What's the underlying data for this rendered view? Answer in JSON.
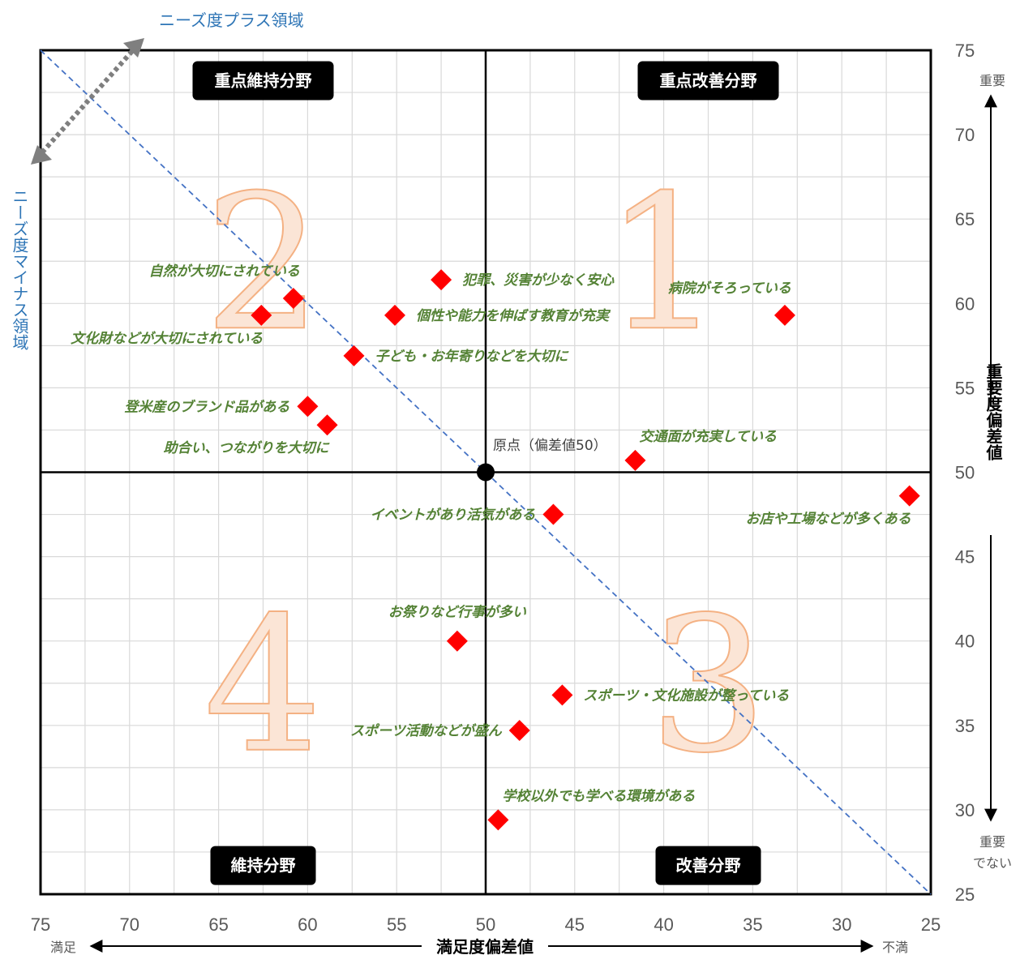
{
  "chart_data": {
    "type": "scatter",
    "xlabel": "満足度偏差値",
    "ylabel": "重要度偏差値",
    "xlim": [
      75,
      25
    ],
    "ylim": [
      25,
      75
    ],
    "x_reversed": true,
    "x_ticks": [
      "75",
      "70",
      "65",
      "60",
      "55",
      "50",
      "45",
      "40",
      "35",
      "30",
      "25"
    ],
    "y_ticks": [
      "75",
      "70",
      "65",
      "60",
      "55",
      "50",
      "45",
      "40",
      "35",
      "30",
      "25"
    ],
    "grid": true,
    "x_end_labels": {
      "left": "満足",
      "right": "不満"
    },
    "y_end_labels": {
      "top": "重要",
      "bottom_line1": "重要",
      "bottom_line2": "でない"
    },
    "origin": {
      "x": 50,
      "y": 50,
      "label": "原点（偏差値50）"
    },
    "diagonal": {
      "from": [
        75,
        75
      ],
      "to": [
        25,
        25
      ]
    },
    "needs_plus_label": "ニーズ度プラス領域",
    "needs_minus_label": "ニーズ度マイナス領域",
    "quadrants": [
      {
        "number": "1",
        "x": 40,
        "y": 62.5
      },
      {
        "number": "2",
        "x": 62.5,
        "y": 62.5
      },
      {
        "number": "3",
        "x": 37.5,
        "y": 37.5
      },
      {
        "number": "4",
        "x": 62.5,
        "y": 37.5
      }
    ],
    "badges": [
      {
        "text": "重点維持分野",
        "x": 62.5,
        "y": 73.2
      },
      {
        "text": "重点改善分野",
        "x": 37.5,
        "y": 73.2
      },
      {
        "text": "維持分野",
        "x": 62.5,
        "y": 26.7
      },
      {
        "text": "改善分野",
        "x": 37.5,
        "y": 26.7
      }
    ],
    "points": [
      {
        "label": "自然が大切にされている",
        "x": 60.8,
        "y": 60.3,
        "label_pos": "above-left"
      },
      {
        "label": "犯罪、災害が少なく安心",
        "x": 52.5,
        "y": 61.4,
        "label_pos": "right"
      },
      {
        "label": "病院がそろっている",
        "x": 33.2,
        "y": 59.3,
        "label_pos": "above-left"
      },
      {
        "label": "文化財などが大切にされている",
        "x": 62.6,
        "y": 59.3,
        "label_pos": "below-left"
      },
      {
        "label": "個性や能力を伸ばす教育が充実",
        "x": 55.1,
        "y": 59.3,
        "label_pos": "right"
      },
      {
        "label": "子ども・お年寄りなどを大切に",
        "x": 57.4,
        "y": 56.9,
        "label_pos": "right"
      },
      {
        "label": "登米産のブランド品がある",
        "x": 60.0,
        "y": 53.9,
        "label_pos": "left"
      },
      {
        "label": "助合い、つながりを大切に",
        "x": 58.9,
        "y": 52.8,
        "label_pos": "below-left"
      },
      {
        "label": "交通面が充実している",
        "x": 41.6,
        "y": 50.7,
        "label_pos": "above-right"
      },
      {
        "label": "お店や工場などが多くある",
        "x": 26.2,
        "y": 48.6,
        "label_pos": "below-left"
      },
      {
        "label": "イベントがあり活気がある",
        "x": 46.2,
        "y": 47.5,
        "label_pos": "left"
      },
      {
        "label": "お祭りなど行事が多い",
        "x": 51.6,
        "y": 40.0,
        "label_pos": "above"
      },
      {
        "label": "スポーツ・文化施設が整っている",
        "x": 45.7,
        "y": 36.8,
        "label_pos": "right"
      },
      {
        "label": "スポーツ活動などが盛ん",
        "x": 48.1,
        "y": 34.7,
        "label_pos": "left"
      },
      {
        "label": "学校以外でも学べる環境がある",
        "x": 49.3,
        "y": 29.4,
        "label_pos": "above-right"
      }
    ]
  },
  "colors": {
    "point": "#ff0000",
    "point_label": "#548235",
    "diagonal": "#4472c4",
    "grid": "#d9d9d9",
    "badge_bg": "#000000",
    "needs_text": "#2e75b6",
    "needs_arrow": "#7f7f7f",
    "quadrant_fill": "#fbe5d6",
    "quadrant_stroke": "#f4b183"
  }
}
